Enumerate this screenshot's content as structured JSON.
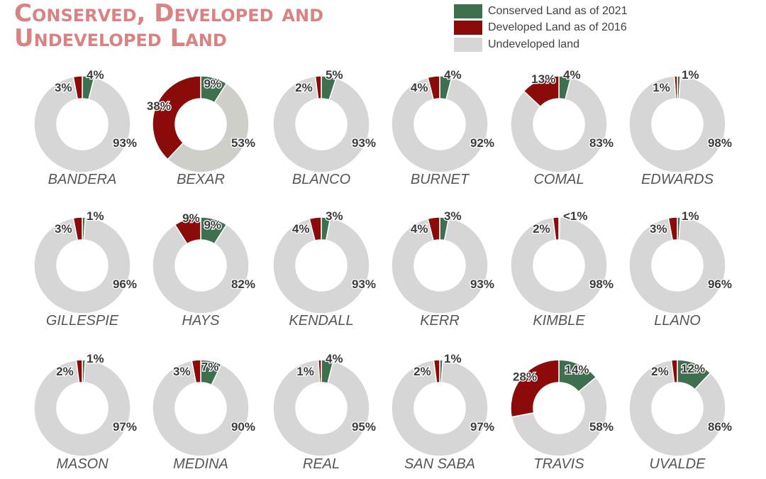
{
  "title": {
    "line1": "Conserved, Developed and",
    "line2": "Undeveloped Land"
  },
  "legend": [
    {
      "label": "Conserved Land as of 2021",
      "color": "#3e7050"
    },
    {
      "label": "Developed Land as of 2016",
      "color": "#8b0b0b"
    },
    {
      "label": "Undeveloped land",
      "color": "#d6d6d6"
    }
  ],
  "chart_data": {
    "type": "pie",
    "variant": "donut",
    "series_order": [
      "Conserved Land as of 2021",
      "Developed Land as of 2016",
      "Undeveloped land"
    ],
    "charts": [
      {
        "county": "BANDERA",
        "values": [
          4,
          3,
          93
        ],
        "labels": [
          "4%",
          "3%",
          "93%"
        ]
      },
      {
        "county": "BEXAR",
        "values": [
          9,
          38,
          53
        ],
        "labels": [
          "9%",
          "38%",
          "53%"
        ]
      },
      {
        "county": "BLANCO",
        "values": [
          5,
          2,
          93
        ],
        "labels": [
          "5%",
          "2%",
          "93%"
        ]
      },
      {
        "county": "BURNET",
        "values": [
          4,
          4,
          92
        ],
        "labels": [
          "4%",
          "4%",
          "92%"
        ]
      },
      {
        "county": "COMAL",
        "values": [
          4,
          13,
          83
        ],
        "labels": [
          "4%",
          "13%",
          "83%"
        ]
      },
      {
        "county": "EDWARDS",
        "values": [
          1,
          1,
          98
        ],
        "labels": [
          "1%",
          "1%",
          "98%"
        ]
      },
      {
        "county": "GILLESPIE",
        "values": [
          1,
          3,
          96
        ],
        "labels": [
          "1%",
          "3%",
          "96%"
        ]
      },
      {
        "county": "HAYS",
        "values": [
          9,
          9,
          82
        ],
        "labels": [
          "9%",
          "9%",
          "82%"
        ]
      },
      {
        "county": "KENDALL",
        "values": [
          3,
          4,
          93
        ],
        "labels": [
          "3%",
          "4%",
          "93%"
        ]
      },
      {
        "county": "KERR",
        "values": [
          3,
          4,
          93
        ],
        "labels": [
          "3%",
          "4%",
          "93%"
        ]
      },
      {
        "county": "KIMBLE",
        "values": [
          0.3,
          2,
          97.7
        ],
        "labels": [
          "<1%",
          "2%",
          "98%"
        ]
      },
      {
        "county": "LLANO",
        "values": [
          1,
          3,
          96
        ],
        "labels": [
          "1%",
          "3%",
          "96%"
        ]
      },
      {
        "county": "MASON",
        "values": [
          1,
          2,
          97
        ],
        "labels": [
          "1%",
          "2%",
          "97%"
        ]
      },
      {
        "county": "MEDINA",
        "values": [
          7,
          3,
          90
        ],
        "labels": [
          "7%",
          "3%",
          "90%"
        ]
      },
      {
        "county": "REAL",
        "values": [
          4,
          1,
          95
        ],
        "labels": [
          "4%",
          "1%",
          "95%"
        ]
      },
      {
        "county": "SAN SABA",
        "values": [
          1,
          2,
          97
        ],
        "labels": [
          "1%",
          "2%",
          "97%"
        ]
      },
      {
        "county": "TRAVIS",
        "values": [
          14,
          28,
          58
        ],
        "labels": [
          "14%",
          "28%",
          "58%"
        ]
      },
      {
        "county": "UVALDE",
        "values": [
          12,
          2,
          86
        ],
        "labels": [
          "12%",
          "2%",
          "86%"
        ]
      }
    ]
  }
}
